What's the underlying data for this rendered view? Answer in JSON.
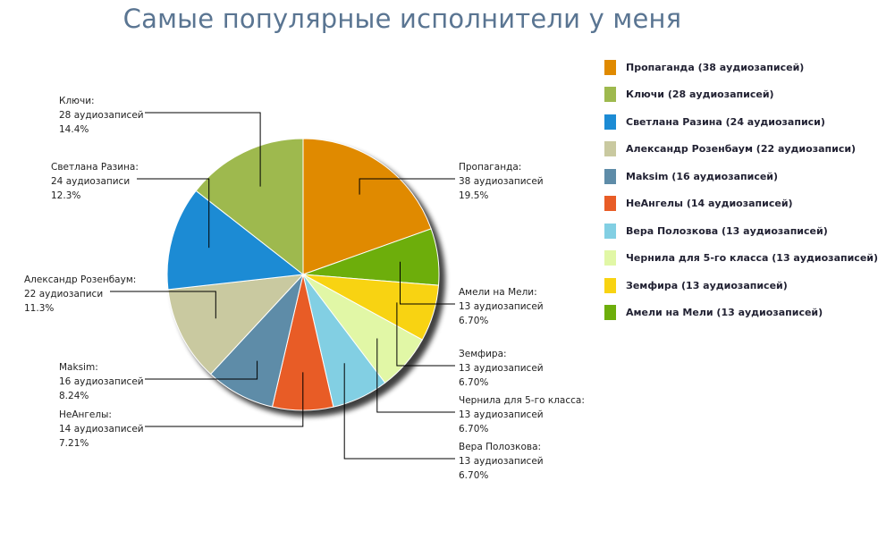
{
  "chart_data": {
    "type": "pie",
    "title": "Самые популярные исполнители у меня",
    "slices": [
      {
        "name": "Пропаганда",
        "count_text": "38 аудиозаписей",
        "percent_text": "19.5%",
        "value": 19.5,
        "color": "#E08A00",
        "legend": "Пропаганда (38 аудиозаписей)"
      },
      {
        "name": "Ключи",
        "count_text": "28 аудиозаписей",
        "percent_text": "14.4%",
        "value": 14.4,
        "color": "#9EB94E",
        "legend": "Ключи (28 аудиозаписей)"
      },
      {
        "name": "Светлана Разина",
        "count_text": "24 аудиозаписи",
        "percent_text": "12.3%",
        "value": 12.3,
        "color": "#1C8BD4",
        "legend": "Светлана Разина (24 аудиозаписи)"
      },
      {
        "name": "Александр Розенбаум",
        "count_text": "22 аудиозаписи",
        "percent_text": "11.3%",
        "value": 11.3,
        "color": "#C9C9A0",
        "legend": "Александр Розенбаум (22 аудиозаписи)"
      },
      {
        "name": "Maksim",
        "count_text": "16 аудиозаписей",
        "percent_text": "8.24%",
        "value": 8.24,
        "color": "#5E8CA8",
        "legend": "Maksim (16 аудиозаписей)"
      },
      {
        "name": "НеАнгелы",
        "count_text": "14 аудиозаписей",
        "percent_text": "7.21%",
        "value": 7.21,
        "color": "#E85C26",
        "legend": "НеАнгелы (14 аудиозаписей)"
      },
      {
        "name": "Вера Полозкова",
        "count_text": "13 аудиозаписей",
        "percent_text": "6.70%",
        "value": 6.7,
        "color": "#82CFE3",
        "legend": "Вера Полозкова (13 аудиозаписей)"
      },
      {
        "name": "Чернила для 5-го класса",
        "count_text": "13 аудиозаписей",
        "percent_text": "6.70%",
        "value": 6.7,
        "color": "#E1F7A6",
        "legend": "Чернила для 5-го класса (13 аудиозаписей)"
      },
      {
        "name": "Земфира",
        "count_text": "13 аудиозаписей",
        "percent_text": "6.70%",
        "value": 6.7,
        "color": "#F8D312",
        "legend": "Земфира (13 аудиозаписей)"
      },
      {
        "name": "Амели на Мели",
        "count_text": "13 аудиозаписей",
        "percent_text": "6.70%",
        "value": 6.7,
        "color": "#6DAE0B",
        "legend": "Амели на Мели (13 аудиозаписей)"
      }
    ],
    "legend_position": "right"
  }
}
